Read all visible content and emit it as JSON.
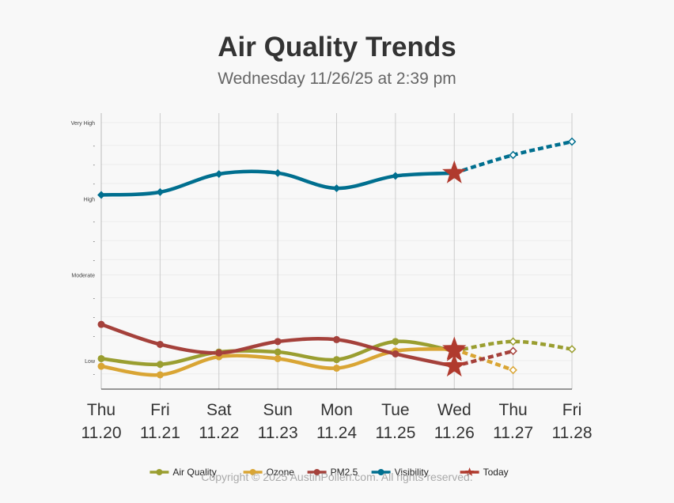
{
  "header": {
    "title": "Air Quality Trends",
    "subtitle": "Wednesday 11/26/25 at 2:39 pm"
  },
  "footer": {
    "copyright": "Copyright © 2025 AustinPollen.com.  All rights reserved."
  },
  "chart_data": {
    "type": "line",
    "title": "Air Quality Trends",
    "subtitle": "Wednesday 11/26/25 at 2:39 pm",
    "categories": [
      {
        "day": "Thu",
        "date": "11.20"
      },
      {
        "day": "Fri",
        "date": "11.21"
      },
      {
        "day": "Sat",
        "date": "11.22"
      },
      {
        "day": "Sun",
        "date": "11.23"
      },
      {
        "day": "Mon",
        "date": "11.24"
      },
      {
        "day": "Tue",
        "date": "11.25"
      },
      {
        "day": "Wed",
        "date": "11.26"
      },
      {
        "day": "Thu",
        "date": "11.27"
      },
      {
        "day": "Fri",
        "date": "11.28"
      }
    ],
    "today_index": 6,
    "ylim": [
      0,
      14.5
    ],
    "y_labels": [
      {
        "value": 1.5,
        "text": "Low"
      },
      {
        "value": 6,
        "text": "Moderate"
      },
      {
        "value": 10,
        "text": "High"
      },
      {
        "value": 14,
        "text": "Very High"
      }
    ],
    "y_minor_ticks": [
      0.8,
      2.8,
      3.8,
      4.8,
      6.8,
      7.8,
      8.8,
      10.8,
      11.8,
      12.8
    ],
    "series": [
      {
        "name": "Air Quality",
        "color": "#9a9e30",
        "values": [
          1.6,
          1.3,
          1.95,
          1.95,
          1.55,
          2.5,
          2.0,
          2.5,
          2.1
        ]
      },
      {
        "name": "Ozone",
        "color": "#d9a534",
        "values": [
          1.2,
          0.75,
          1.7,
          1.6,
          1.1,
          2.0,
          2.1,
          1.0,
          null
        ]
      },
      {
        "name": "PM2.5",
        "color": "#a5413b",
        "values": [
          3.4,
          2.35,
          1.9,
          2.5,
          2.6,
          1.85,
          1.2,
          2.0,
          null
        ]
      },
      {
        "name": "Visibility",
        "color": "#006f8f",
        "values": [
          10.2,
          10.35,
          11.3,
          11.35,
          10.55,
          11.2,
          11.35,
          12.3,
          13.0
        ]
      }
    ],
    "today_marker_color": "#b03a2e",
    "legend": [
      {
        "name": "Air Quality",
        "color": "#9a9e30"
      },
      {
        "name": "Ozone",
        "color": "#d9a534"
      },
      {
        "name": "PM2.5",
        "color": "#a5413b"
      },
      {
        "name": "Visibility",
        "color": "#006f8f"
      },
      {
        "name": "Today",
        "color": "#b03a2e"
      }
    ],
    "legend_position": "bottom"
  }
}
